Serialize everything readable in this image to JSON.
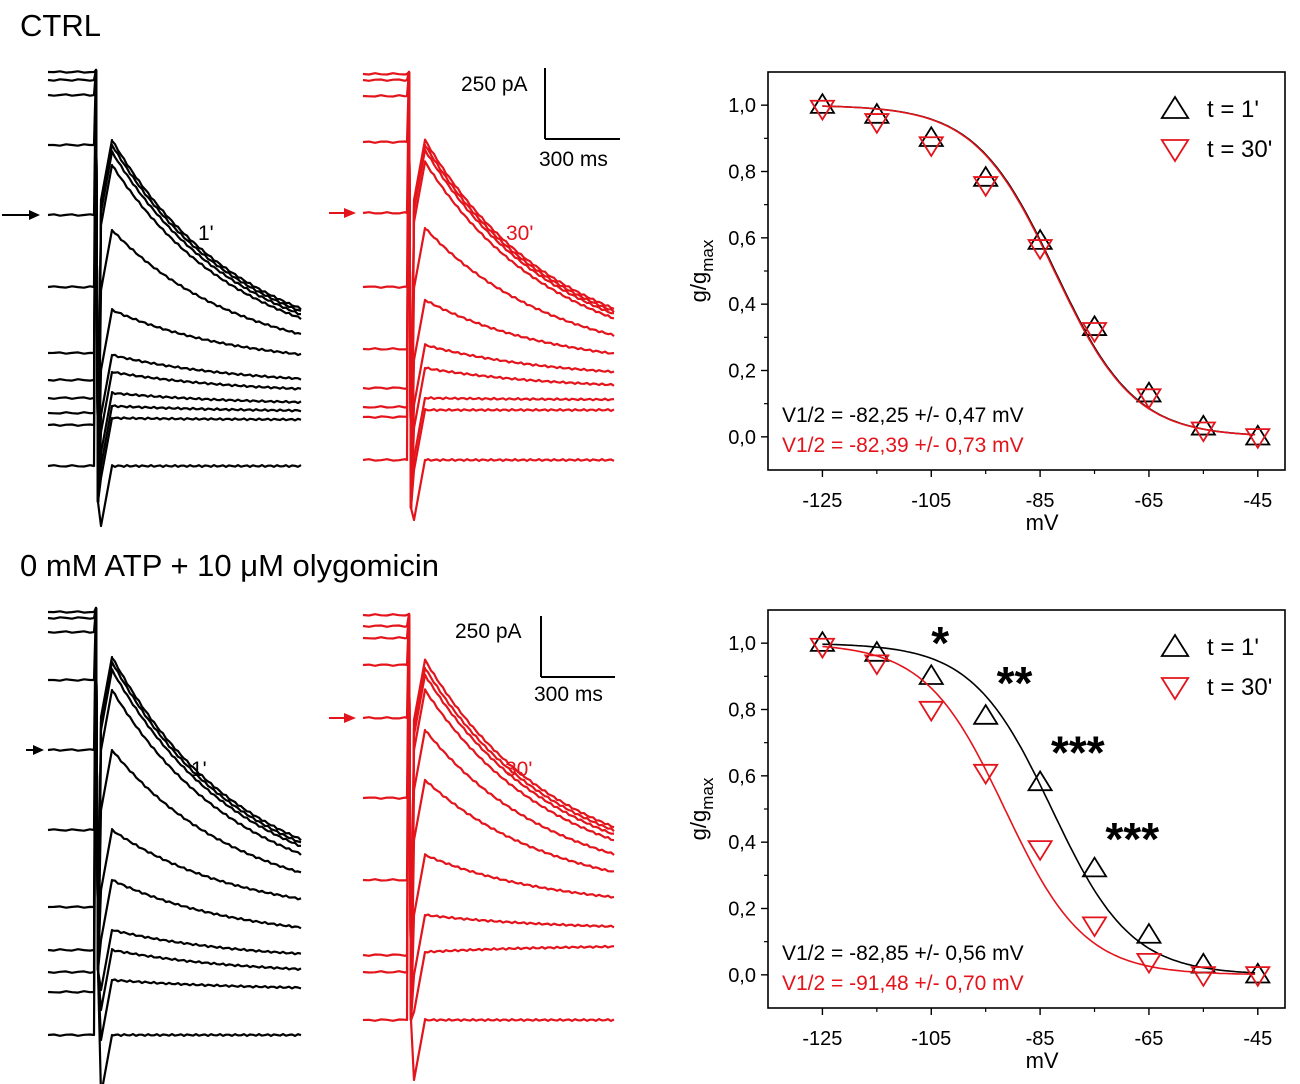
{
  "colors": {
    "ctrl": "#000000",
    "t30": "#e3141b"
  },
  "panels": [
    {
      "id": "top",
      "section_title": "CTRL",
      "scale_bar": {
        "current": "250 pA",
        "time": "300 ms"
      },
      "trace_label_1": "1'",
      "trace_label_30": "30'"
    },
    {
      "id": "bottom",
      "section_title": "0 mM ATP + 10 μM olygomicin",
      "scale_bar": {
        "current": "250 pA",
        "time": "300 ms"
      },
      "trace_label_1": "1'",
      "trace_label_30": "30'"
    }
  ],
  "chart_data": [
    {
      "type": "scatter",
      "title": "CTRL",
      "xlabel": "mV",
      "ylabel_base": "g/g",
      "ylabel_sub": "max",
      "xlim": [
        -135,
        -40
      ],
      "ylim": [
        -0.1,
        1.1
      ],
      "xticks": [
        -125,
        -105,
        -85,
        -65,
        -45
      ],
      "yticks": [
        0.0,
        0.2,
        0.4,
        0.6,
        0.8,
        1.0
      ],
      "ytick_labels": [
        "0,0",
        "0,2",
        "0,4",
        "0,6",
        "0,8",
        "1,0"
      ],
      "legend_position": "top-right",
      "series": [
        {
          "name": "t = 1'",
          "marker": "triangle-up",
          "color": "#000000",
          "x": [
            -125,
            -115,
            -105,
            -95,
            -85,
            -75,
            -65,
            -55,
            -45
          ],
          "y": [
            1.0,
            0.97,
            0.9,
            0.78,
            0.59,
            0.33,
            0.13,
            0.03,
            0.0
          ],
          "fit": {
            "v_half": -82.25,
            "slope": 7.3
          },
          "v_half_label": "V1/2 = -82,25 +/- 0,47 mV"
        },
        {
          "name": "t = 30'",
          "marker": "triangle-down",
          "color": "#e3141b",
          "x": [
            -125,
            -115,
            -105,
            -95,
            -85,
            -75,
            -65,
            -55,
            -45
          ],
          "y": [
            0.99,
            0.95,
            0.88,
            0.76,
            0.57,
            0.32,
            0.12,
            0.02,
            0.0
          ],
          "fit": {
            "v_half": -82.39,
            "slope": 7.3
          },
          "v_half_label": "V1/2 = -82,39 +/- 0,73 mV"
        }
      ],
      "annotations": []
    },
    {
      "type": "scatter",
      "title": "0 mM ATP + 10 μM olygomicin",
      "xlabel": "mV",
      "ylabel_base": "g/g",
      "ylabel_sub": "max",
      "xlim": [
        -135,
        -40
      ],
      "ylim": [
        -0.1,
        1.1
      ],
      "xticks": [
        -125,
        -105,
        -85,
        -65,
        -45
      ],
      "yticks": [
        0.0,
        0.2,
        0.4,
        0.6,
        0.8,
        1.0
      ],
      "ytick_labels": [
        "0,0",
        "0,2",
        "0,4",
        "0,6",
        "0,8",
        "1,0"
      ],
      "legend_position": "top-right",
      "series": [
        {
          "name": "t = 1'",
          "marker": "triangle-up",
          "color": "#000000",
          "x": [
            -125,
            -115,
            -105,
            -95,
            -85,
            -75,
            -65,
            -55,
            -45
          ],
          "y": [
            1.0,
            0.97,
            0.9,
            0.78,
            0.58,
            0.32,
            0.12,
            0.03,
            0.0
          ],
          "fit": {
            "v_half": -82.85,
            "slope": 7.3
          },
          "v_half_label": "V1/2 = -82,85 +/- 0,56 mV"
        },
        {
          "name": "t = 30'",
          "marker": "triangle-down",
          "color": "#e3141b",
          "x": [
            -125,
            -115,
            -105,
            -95,
            -85,
            -75,
            -65,
            -55,
            -45
          ],
          "y": [
            0.99,
            0.94,
            0.8,
            0.61,
            0.38,
            0.15,
            0.04,
            0.0,
            0.0
          ],
          "fit": {
            "v_half": -91.48,
            "slope": 7.3
          },
          "v_half_label": "V1/2 = -91,48 +/- 0,70 mV"
        }
      ],
      "annotations": [
        {
          "text": "*",
          "x": -105,
          "y": 1.0
        },
        {
          "text": "**",
          "x": -93,
          "y": 0.88
        },
        {
          "text": "***",
          "x": -83,
          "y": 0.67
        },
        {
          "text": "***",
          "x": -73,
          "y": 0.41
        }
      ]
    }
  ]
}
